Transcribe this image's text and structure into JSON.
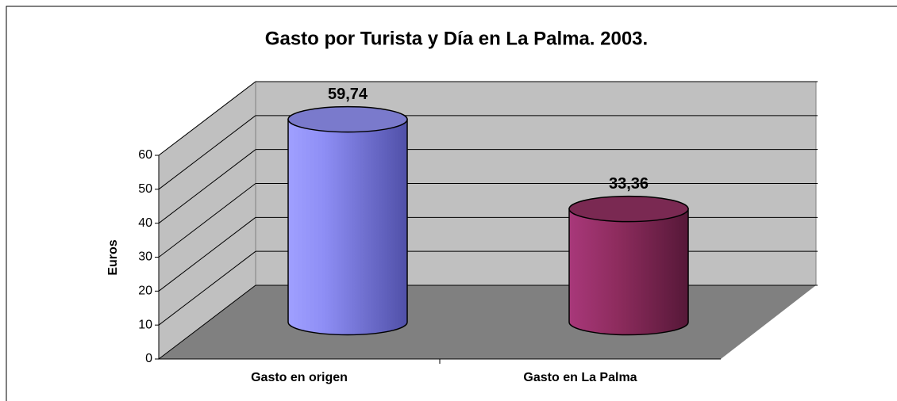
{
  "chart_data": {
    "type": "bar",
    "title": "Gasto por Turista y Día en La Palma. 2003.",
    "ylabel": "Euros",
    "categories": [
      "Gasto en origen",
      "Gasto en La Palma"
    ],
    "values": [
      59.74,
      33.36
    ],
    "value_labels": [
      "59,74",
      "33,36"
    ],
    "colors": [
      "#9999ff",
      "#993366"
    ],
    "ylim": [
      0,
      60
    ],
    "yticks": [
      0,
      10,
      20,
      30,
      40,
      50,
      60
    ],
    "grid": true
  }
}
